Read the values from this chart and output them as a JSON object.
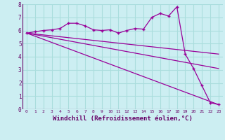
{
  "background_color": "#cceef2",
  "grid_color": "#aadddd",
  "line_color": "#990099",
  "xlim": [
    -0.5,
    23.5
  ],
  "ylim": [
    0,
    8
  ],
  "xlabel": "Windchill (Refroidissement éolien,°C)",
  "xlabel_fontsize": 6.5,
  "xtick_labels": [
    "0",
    "1",
    "2",
    "3",
    "4",
    "5",
    "6",
    "7",
    "8",
    "9",
    "10",
    "11",
    "12",
    "13",
    "14",
    "15",
    "16",
    "17",
    "18",
    "19",
    "20",
    "21",
    "22",
    "23"
  ],
  "ytick_labels": [
    "0",
    "1",
    "2",
    "3",
    "4",
    "5",
    "6",
    "7",
    "8"
  ],
  "series": [
    {
      "x": [
        0,
        1,
        2,
        3,
        4,
        5,
        6,
        7,
        8,
        9,
        10,
        11,
        12,
        13,
        14,
        15,
        16,
        17,
        18,
        19,
        20,
        21,
        22,
        23
      ],
      "y": [
        5.8,
        5.9,
        6.0,
        6.05,
        6.15,
        6.55,
        6.55,
        6.35,
        6.05,
        6.0,
        6.05,
        5.8,
        6.0,
        6.15,
        6.1,
        7.0,
        7.3,
        7.1,
        7.8,
        4.2,
        3.1,
        1.8,
        0.5,
        0.35
      ],
      "marker": "+"
    },
    {
      "x": [
        0,
        23
      ],
      "y": [
        5.8,
        4.2
      ],
      "marker": null
    },
    {
      "x": [
        0,
        23
      ],
      "y": [
        5.8,
        3.1
      ],
      "marker": null
    },
    {
      "x": [
        0,
        23
      ],
      "y": [
        5.8,
        0.35
      ],
      "marker": null
    }
  ]
}
